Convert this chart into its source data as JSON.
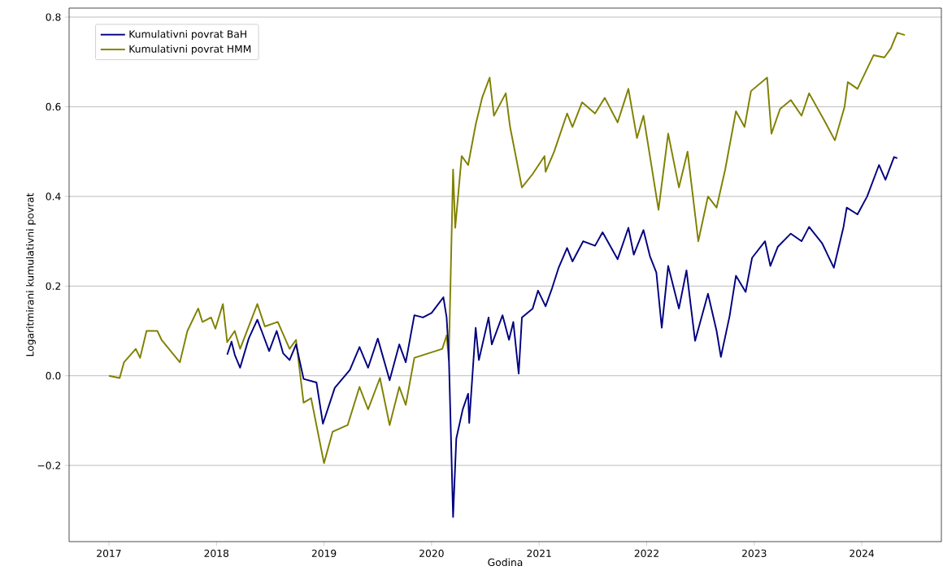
{
  "chart_data": {
    "type": "line",
    "xlabel": "Godina",
    "ylabel": "Logaritmirani kumulativni povrat",
    "xlim": [
      2016.63,
      2024.74
    ],
    "ylim": [
      -0.37,
      0.82
    ],
    "xticks": [
      2017,
      2018,
      2019,
      2020,
      2021,
      2022,
      2023,
      2024
    ],
    "yticks": [
      {
        "value": -0.2,
        "label": "−0.2"
      },
      {
        "value": 0.0,
        "label": "0.0"
      },
      {
        "value": 0.2,
        "label": "0.2"
      },
      {
        "value": 0.4,
        "label": "0.4"
      },
      {
        "value": 0.6,
        "label": "0.6"
      },
      {
        "value": 0.8,
        "label": "0.8"
      }
    ],
    "grid": "y",
    "legend": "top left",
    "marker": "none",
    "line_style": "solid",
    "series": [
      {
        "name": "Kumulativni povrat BaH",
        "color": "#000080",
        "x": [
          2018.1,
          2018.14,
          2018.17,
          2018.22,
          2018.3,
          2018.38,
          2018.42,
          2018.49,
          2018.56,
          2018.62,
          2018.68,
          2018.74,
          2018.81,
          2018.93,
          2018.99,
          2019.1,
          2019.24,
          2019.33,
          2019.41,
          2019.5,
          2019.61,
          2019.7,
          2019.76,
          2019.84,
          2019.92,
          2020.0,
          2020.11,
          2020.14,
          2020.16,
          2020.2,
          2020.23,
          2020.29,
          2020.34,
          2020.35,
          2020.41,
          2020.44,
          2020.53,
          2020.56,
          2020.66,
          2020.72,
          2020.76,
          2020.81,
          2020.84,
          2020.94,
          2020.99,
          2021.06,
          2021.12,
          2021.18,
          2021.26,
          2021.31,
          2021.41,
          2021.52,
          2021.59,
          2021.73,
          2021.83,
          2021.88,
          2021.97,
          2022.03,
          2022.09,
          2022.14,
          2022.2,
          2022.3,
          2022.37,
          2022.45,
          2022.57,
          2022.65,
          2022.69,
          2022.77,
          2022.83,
          2022.92,
          2022.98,
          2023.1,
          2023.15,
          2023.22,
          2023.34,
          2023.44,
          2023.51,
          2023.63,
          2023.74,
          2023.83,
          2023.86,
          2023.96,
          2024.05,
          2024.16,
          2024.22,
          2024.3,
          2024.33
        ],
        "values": [
          0.047,
          0.076,
          0.047,
          0.018,
          0.083,
          0.125,
          0.1,
          0.055,
          0.1,
          0.05,
          0.035,
          0.07,
          -0.007,
          -0.015,
          -0.107,
          -0.027,
          0.013,
          0.064,
          0.018,
          0.083,
          -0.01,
          0.07,
          0.03,
          0.135,
          0.13,
          0.14,
          0.175,
          0.13,
          0.05,
          -0.315,
          -0.14,
          -0.075,
          -0.04,
          -0.105,
          0.107,
          0.035,
          0.13,
          0.07,
          0.135,
          0.08,
          0.12,
          0.005,
          0.13,
          0.15,
          0.19,
          0.155,
          0.195,
          0.24,
          0.285,
          0.255,
          0.3,
          0.29,
          0.32,
          0.26,
          0.33,
          0.27,
          0.325,
          0.267,
          0.23,
          0.107,
          0.245,
          0.15,
          0.235,
          0.078,
          0.183,
          0.1,
          0.042,
          0.132,
          0.223,
          0.187,
          0.263,
          0.3,
          0.245,
          0.288,
          0.317,
          0.3,
          0.332,
          0.296,
          0.241,
          0.332,
          0.375,
          0.36,
          0.4,
          0.47,
          0.437,
          0.488,
          0.485
        ]
      },
      {
        "name": "Kumulativni povrat HMM",
        "color": "#808000",
        "x": [
          2017.0,
          2017.1,
          2017.14,
          2017.25,
          2017.29,
          2017.35,
          2017.45,
          2017.49,
          2017.66,
          2017.73,
          2017.83,
          2017.87,
          2017.95,
          2017.99,
          2018.06,
          2018.1,
          2018.17,
          2018.22,
          2018.38,
          2018.45,
          2018.57,
          2018.68,
          2018.74,
          2018.81,
          2018.88,
          2019.0,
          2019.08,
          2019.22,
          2019.33,
          2019.41,
          2019.52,
          2019.61,
          2019.7,
          2019.76,
          2019.84,
          2020.1,
          2020.14,
          2020.16,
          2020.2,
          2020.22,
          2020.28,
          2020.34,
          2020.41,
          2020.47,
          2020.54,
          2020.58,
          2020.69,
          2020.73,
          2020.84,
          2020.94,
          2021.05,
          2021.06,
          2021.14,
          2021.26,
          2021.31,
          2021.4,
          2021.52,
          2021.61,
          2021.73,
          2021.83,
          2021.91,
          2021.97,
          2022.03,
          2022.11,
          2022.2,
          2022.3,
          2022.38,
          2022.48,
          2022.57,
          2022.65,
          2022.73,
          2022.83,
          2022.91,
          2022.97,
          2023.12,
          2023.16,
          2023.24,
          2023.34,
          2023.44,
          2023.51,
          2023.65,
          2023.75,
          2023.84,
          2023.87,
          2023.96,
          2024.11,
          2024.21,
          2024.27,
          2024.33,
          2024.4
        ],
        "values": [
          0.0,
          -0.005,
          0.03,
          0.06,
          0.04,
          0.1,
          0.1,
          0.08,
          0.03,
          0.1,
          0.15,
          0.12,
          0.13,
          0.105,
          0.16,
          0.075,
          0.1,
          0.06,
          0.16,
          0.11,
          0.12,
          0.06,
          0.08,
          -0.06,
          -0.05,
          -0.195,
          -0.125,
          -0.11,
          -0.025,
          -0.075,
          -0.005,
          -0.11,
          -0.025,
          -0.065,
          0.04,
          0.06,
          0.09,
          0.035,
          0.46,
          0.33,
          0.49,
          0.47,
          0.56,
          0.62,
          0.665,
          0.58,
          0.63,
          0.555,
          0.42,
          0.45,
          0.49,
          0.455,
          0.5,
          0.585,
          0.555,
          0.61,
          0.585,
          0.62,
          0.565,
          0.64,
          0.53,
          0.58,
          0.49,
          0.37,
          0.54,
          0.42,
          0.5,
          0.3,
          0.4,
          0.375,
          0.46,
          0.59,
          0.555,
          0.635,
          0.665,
          0.54,
          0.595,
          0.615,
          0.58,
          0.63,
          0.57,
          0.525,
          0.6,
          0.655,
          0.64,
          0.715,
          0.71,
          0.73,
          0.765,
          0.76
        ]
      }
    ]
  }
}
